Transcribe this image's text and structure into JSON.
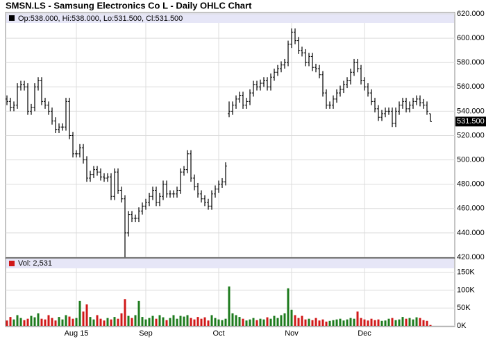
{
  "chart_data": [
    {
      "type": "ohlc",
      "title": "SMSN.LS - Samsung Electronics Co L - Daily OHLC Chart",
      "legend_label": "Op:538.000, Hi:538.000, Lo:531.500, Cl:531.500",
      "last_price_label": "531.500",
      "color": "#000000",
      "grid": true,
      "ylim": [
        420,
        620
      ],
      "yticks": [
        {
          "value": 420,
          "label": "420.000"
        },
        {
          "value": 440,
          "label": "440.000"
        },
        {
          "value": 460,
          "label": "460.000"
        },
        {
          "value": 480,
          "label": "480.000"
        },
        {
          "value": 500,
          "label": "500.000"
        },
        {
          "value": 520,
          "label": "520.000"
        },
        {
          "value": 540,
          "label": "540.000"
        },
        {
          "value": 560,
          "label": "560.000"
        },
        {
          "value": 580,
          "label": "580.000"
        },
        {
          "value": 600,
          "label": "600.000"
        },
        {
          "value": 620,
          "label": "620.000"
        }
      ],
      "opens": [
        550,
        548,
        543,
        545,
        560,
        562,
        560,
        540,
        543,
        560,
        565,
        548,
        545,
        540,
        532,
        525,
        527,
        527,
        548,
        520,
        505,
        505,
        510,
        500,
        485,
        488,
        492,
        490,
        486,
        485,
        486,
        470,
        490,
        475,
        468,
        440,
        455,
        452,
        452,
        458,
        462,
        465,
        470,
        475,
        465,
        470,
        480,
        472,
        472,
        472,
        475,
        490,
        492,
        505,
        485,
        478,
        472,
        468,
        465,
        462,
        472,
        476,
        480,
        482,
        538,
        540,
        545,
        550,
        553,
        545,
        548,
        555,
        562,
        560,
        563,
        565,
        560,
        568,
        572,
        575,
        578,
        580,
        595,
        605,
        598,
        590,
        588,
        580,
        585,
        576,
        575,
        570,
        555,
        545,
        545,
        550,
        555,
        558,
        562,
        565,
        572,
        580,
        575,
        565,
        560,
        555,
        548,
        542,
        535,
        538,
        540,
        540,
        530,
        540,
        545,
        548,
        542,
        545,
        548,
        550,
        547,
        545,
        538
      ],
      "highs": [
        553,
        551,
        548,
        563,
        565,
        565,
        563,
        546,
        563,
        568,
        568,
        551,
        548,
        543,
        535,
        530,
        530,
        551,
        551,
        523,
        508,
        513,
        513,
        503,
        491,
        495,
        495,
        493,
        489,
        489,
        489,
        493,
        493,
        478,
        471,
        458,
        458,
        455,
        461,
        465,
        468,
        473,
        478,
        478,
        473,
        483,
        483,
        475,
        475,
        478,
        493,
        495,
        508,
        508,
        488,
        481,
        475,
        471,
        468,
        475,
        479,
        483,
        485,
        498,
        548,
        548,
        553,
        556,
        556,
        551,
        558,
        565,
        565,
        566,
        568,
        568,
        571,
        575,
        578,
        581,
        583,
        598,
        608,
        608,
        601,
        593,
        591,
        588,
        588,
        579,
        578,
        573,
        558,
        548,
        553,
        558,
        561,
        565,
        568,
        575,
        583,
        583,
        578,
        568,
        563,
        558,
        551,
        545,
        541,
        543,
        543,
        543,
        543,
        548,
        551,
        551,
        548,
        551,
        553,
        553,
        550,
        548,
        538
      ],
      "lows": [
        545,
        540,
        540,
        542,
        557,
        557,
        537,
        537,
        540,
        557,
        545,
        542,
        537,
        529,
        522,
        522,
        524,
        524,
        517,
        502,
        502,
        502,
        497,
        482,
        482,
        485,
        487,
        483,
        482,
        482,
        467,
        467,
        472,
        465,
        420,
        437,
        449,
        449,
        449,
        455,
        459,
        462,
        467,
        462,
        462,
        467,
        469,
        469,
        469,
        469,
        472,
        487,
        489,
        482,
        475,
        469,
        465,
        462,
        459,
        459,
        469,
        473,
        477,
        479,
        535,
        537,
        542,
        547,
        542,
        542,
        545,
        552,
        557,
        557,
        560,
        557,
        557,
        565,
        569,
        572,
        575,
        577,
        592,
        595,
        587,
        585,
        577,
        577,
        573,
        572,
        567,
        552,
        542,
        542,
        542,
        547,
        552,
        555,
        559,
        562,
        569,
        572,
        562,
        557,
        552,
        545,
        539,
        532,
        532,
        535,
        537,
        527,
        527,
        537,
        542,
        539,
        539,
        542,
        545,
        544,
        542,
        537,
        531.5
      ],
      "closes": [
        548,
        543,
        545,
        560,
        562,
        560,
        540,
        543,
        560,
        565,
        548,
        545,
        540,
        532,
        525,
        527,
        527,
        548,
        520,
        505,
        505,
        510,
        500,
        485,
        488,
        492,
        490,
        486,
        485,
        486,
        470,
        490,
        475,
        468,
        440,
        455,
        452,
        452,
        458,
        462,
        465,
        470,
        475,
        465,
        470,
        480,
        472,
        472,
        472,
        475,
        490,
        492,
        505,
        485,
        478,
        472,
        468,
        465,
        462,
        472,
        476,
        480,
        482,
        495,
        540,
        545,
        550,
        553,
        545,
        548,
        555,
        562,
        560,
        563,
        565,
        560,
        568,
        572,
        575,
        578,
        580,
        595,
        605,
        598,
        590,
        588,
        580,
        585,
        576,
        575,
        570,
        555,
        545,
        545,
        550,
        555,
        558,
        562,
        565,
        572,
        580,
        575,
        565,
        560,
        555,
        548,
        542,
        535,
        538,
        540,
        540,
        530,
        540,
        545,
        548,
        542,
        545,
        548,
        550,
        547,
        545,
        540,
        531.5
      ]
    },
    {
      "type": "volume",
      "legend_label": "Vol: 2,531",
      "up_color": "#1e7b1e",
      "down_color": "#d01818",
      "grid": true,
      "ylim": [
        0,
        190000
      ],
      "yticks": [
        {
          "value": 0,
          "label": "0K"
        },
        {
          "value": 50000,
          "label": "50K"
        },
        {
          "value": 100000,
          "label": "100K"
        },
        {
          "value": 150000,
          "label": "150K"
        }
      ],
      "categories": [
        null,
        null,
        null,
        null,
        null,
        null,
        null,
        null,
        null,
        null,
        null,
        null,
        null,
        null,
        null,
        null,
        null,
        null,
        null,
        null,
        "Aug 15",
        null,
        null,
        null,
        null,
        null,
        null,
        null,
        null,
        null,
        null,
        null,
        null,
        null,
        null,
        null,
        null,
        null,
        null,
        null,
        "Sep",
        null,
        null,
        null,
        null,
        null,
        null,
        null,
        null,
        null,
        null,
        null,
        null,
        null,
        null,
        null,
        null,
        null,
        null,
        null,
        null,
        "Oct",
        null,
        null,
        null,
        null,
        null,
        null,
        null,
        null,
        null,
        null,
        null,
        null,
        null,
        null,
        null,
        null,
        null,
        null,
        null,
        null,
        "Nov",
        null,
        null,
        null,
        null,
        null,
        null,
        null,
        null,
        null,
        null,
        null,
        null,
        null,
        null,
        null,
        null,
        null,
        null,
        null,
        null,
        "Dec",
        null,
        null,
        null,
        null,
        null,
        null,
        null,
        null,
        null,
        null,
        null,
        null,
        null,
        null,
        null,
        null,
        null,
        null,
        null
      ],
      "values": [
        15000,
        25000,
        18000,
        30000,
        22000,
        16000,
        20000,
        28000,
        24000,
        35000,
        20000,
        18000,
        30000,
        22000,
        15000,
        25000,
        18000,
        30000,
        26000,
        20000,
        22000,
        70000,
        40000,
        60000,
        25000,
        18000,
        30000,
        20000,
        15000,
        22000,
        18000,
        25000,
        20000,
        35000,
        75000,
        28000,
        22000,
        30000,
        70000,
        25000,
        18000,
        22000,
        28000,
        20000,
        30000,
        24000,
        16000,
        22000,
        30000,
        20000,
        28000,
        26000,
        30000,
        22000,
        18000,
        25000,
        20000,
        24000,
        15000,
        30000,
        22000,
        18000,
        16000,
        20000,
        110000,
        35000,
        30000,
        25000,
        20000,
        15000,
        18000,
        22000,
        16000,
        20000,
        18000,
        24000,
        20000,
        28000,
        22000,
        30000,
        35000,
        105000,
        45000,
        30000,
        22000,
        28000,
        18000,
        20000,
        16000,
        22000,
        15000,
        18000,
        12000,
        14000,
        16000,
        18000,
        20000,
        15000,
        18000,
        22000,
        20000,
        40000,
        22000,
        18000,
        15000,
        20000,
        16000,
        18000,
        14000,
        15000,
        20000,
        22000,
        16000,
        18000,
        25000,
        20000,
        22000,
        18000,
        24000,
        22000,
        16000,
        14000,
        2531
      ]
    }
  ]
}
